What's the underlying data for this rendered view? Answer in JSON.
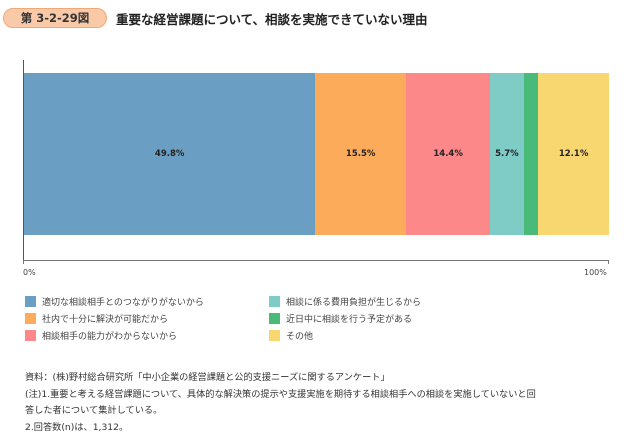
{
  "header": {
    "figure_number": "第 3-2-29図",
    "title": "重要な経営課題について、相談を実施できていない理由"
  },
  "axis": {
    "min_label": "0%",
    "max_label": "100%"
  },
  "chart_data": {
    "type": "bar",
    "orientation": "horizontal-stacked-100",
    "title": "重要な経営課題について、相談を実施できていない理由",
    "xlabel": "",
    "ylabel": "",
    "xlim": [
      0,
      100
    ],
    "tick_labels": [
      "0%",
      "100%"
    ],
    "grid": false,
    "legend_position": "bottom",
    "categories": [
      ""
    ],
    "series": [
      {
        "name": "適切な相談相手とのつながりがないから",
        "values": [
          49.8
        ],
        "label": "49.8%",
        "color": "#6a9fc3"
      },
      {
        "name": "社内で十分に解決が可能だから",
        "values": [
          15.5
        ],
        "label": "15.5%",
        "color": "#fbab5a"
      },
      {
        "name": "相談相手の能力がわからないから",
        "values": [
          14.4
        ],
        "label": "14.4%",
        "color": "#fc8889"
      },
      {
        "name": "相談に係る費用負担が生じるから",
        "values": [
          5.7
        ],
        "label": "5.7%",
        "color": "#7fcbc6"
      },
      {
        "name": "近日中に相談を行う予定がある",
        "values": [
          2.5
        ],
        "label": "",
        "color": "#4aba79"
      },
      {
        "name": "その他",
        "values": [
          12.1
        ],
        "label": "12.1%",
        "color": "#f8d670"
      }
    ]
  },
  "legend": [
    {
      "label": "適切な相談相手とのつながりがないから",
      "color": "#6a9fc3"
    },
    {
      "label": "社内で十分に解決が可能だから",
      "color": "#fbab5a"
    },
    {
      "label": "相談相手の能力がわからないから",
      "color": "#fc8889"
    },
    {
      "label": "相談に係る費用負担が生じるから",
      "color": "#7fcbc6"
    },
    {
      "label": "近日中に相談を行う予定がある",
      "color": "#4aba79"
    },
    {
      "label": "その他",
      "color": "#f8d670"
    }
  ],
  "notes": {
    "source": "資料：(株)野村総合研究所「中小企業の経営課題と公的支援ニーズに関するアンケート」",
    "note1_line1": "(注)1.重要と考える経営課題について、具体的な解決策の提示や支援実施を期待する相談相手への相談を実施していないと回",
    "note1_line2": "答した者について集計している。",
    "note2": "2.回答数(n)は、1,312。"
  }
}
